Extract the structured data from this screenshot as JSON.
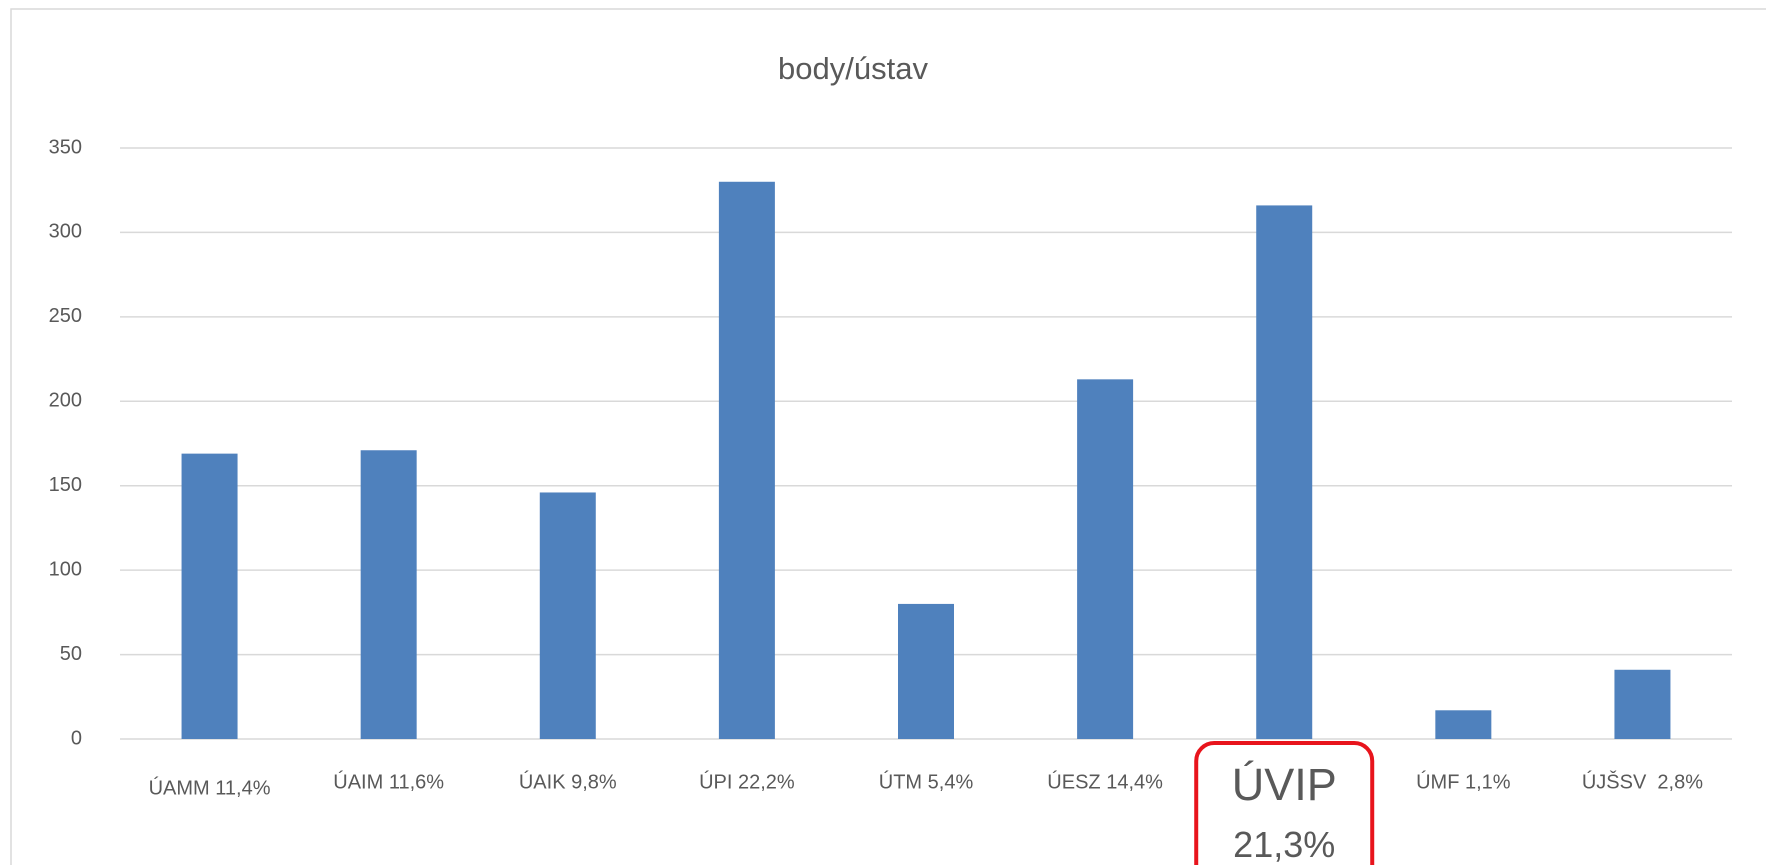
{
  "chart_data": {
    "type": "bar",
    "title": "body/ústav",
    "categories": [
      "ÚAMM 11,4%",
      "ÚAIM 11,6%",
      "ÚAIK 9,8%",
      "ÚPI 22,2%",
      "ÚTM 5,4%",
      "ÚESZ 14,4%",
      "ÚVIP 21,3%",
      "ÚMF 1,1%",
      "ÚJŠSV  2,8%"
    ],
    "values": [
      169,
      171,
      146,
      330,
      80,
      213,
      316,
      17,
      41
    ],
    "color": "#4f81bd",
    "highlight": {
      "category": 6,
      "color": "#e8141c"
    },
    "ylim": [
      0,
      350
    ],
    "yticks": [
      0,
      50,
      100,
      150,
      200,
      250,
      300,
      350
    ],
    "grid": true
  }
}
